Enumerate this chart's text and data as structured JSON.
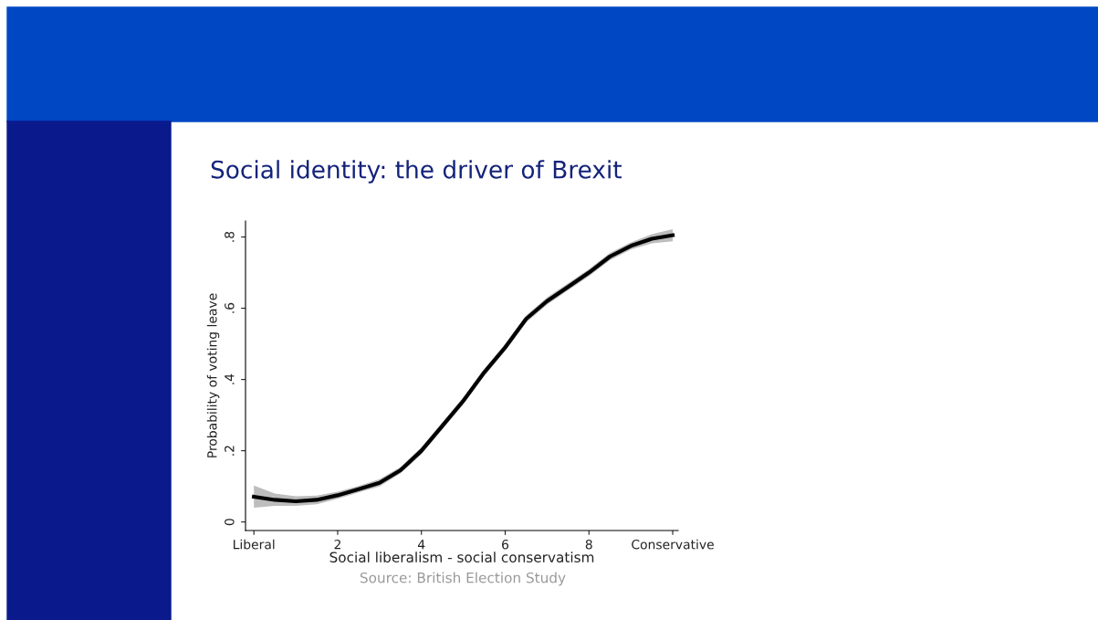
{
  "chart_data": {
    "type": "line",
    "title": "Social identity: the driver of Brexit",
    "xlabel": "Social liberalism - social conservatism",
    "ylabel": "Probability of voting leave",
    "annotations": [
      "Source: British Election Study"
    ],
    "x": [
      0,
      0.5,
      1,
      1.5,
      2,
      2.5,
      3,
      3.5,
      4,
      4.5,
      5,
      5.5,
      6,
      6.5,
      7,
      7.5,
      8,
      8.5,
      9,
      9.5,
      10
    ],
    "series": [
      {
        "color": "#000000",
        "values": [
          0.071,
          0.062,
          0.058,
          0.062,
          0.075,
          0.092,
          0.11,
          0.145,
          0.2,
          0.27,
          0.34,
          0.42,
          0.49,
          0.57,
          0.62,
          0.66,
          0.7,
          0.745,
          0.775,
          0.795,
          0.805
        ],
        "lower": [
          0.04,
          0.045,
          0.045,
          0.05,
          0.065,
          0.083,
          0.1,
          0.136,
          0.19,
          0.26,
          0.33,
          0.41,
          0.48,
          0.56,
          0.61,
          0.65,
          0.69,
          0.735,
          0.765,
          0.782,
          0.788
        ],
        "upper": [
          0.102,
          0.08,
          0.072,
          0.074,
          0.085,
          0.101,
          0.12,
          0.154,
          0.21,
          0.28,
          0.35,
          0.43,
          0.5,
          0.58,
          0.63,
          0.67,
          0.71,
          0.755,
          0.785,
          0.808,
          0.822
        ]
      }
    ],
    "xlim": [
      -0.2,
      10.13
    ],
    "ylim": [
      -0.024,
      0.845
    ],
    "xticks": [
      {
        "value": 0,
        "label": "Liberal"
      },
      2,
      4,
      6,
      8,
      {
        "value": 10,
        "label": "Conservative"
      }
    ],
    "yticks": [
      0,
      {
        "value": 0.2,
        "label": ".2"
      },
      {
        "value": 0.4,
        "label": ".4"
      },
      {
        "value": 0.6,
        "label": ".6"
      },
      {
        "value": 0.8,
        "label": ".8"
      }
    ],
    "grid": false,
    "legend": false,
    "marker": "none",
    "line_style": "solid"
  }
}
